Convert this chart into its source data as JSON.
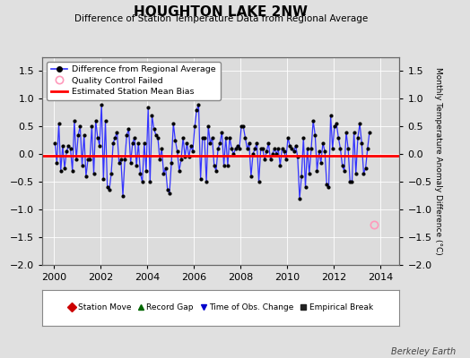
{
  "title": "HOUGHTON LAKE 2NW",
  "subtitle": "Difference of Station Temperature Data from Regional Average",
  "ylabel_right": "Monthly Temperature Anomaly Difference (°C)",
  "watermark": "Berkeley Earth",
  "xlim": [
    1999.5,
    2014.83
  ],
  "ylim": [
    -2.0,
    1.75
  ],
  "yticks": [
    -2.0,
    -1.5,
    -1.0,
    -0.5,
    0.0,
    0.5,
    1.0,
    1.5
  ],
  "xticks": [
    2000,
    2002,
    2004,
    2006,
    2008,
    2010,
    2012,
    2014
  ],
  "bias_value": -0.03,
  "background_color": "#e0e0e0",
  "plot_bg_color": "#dcdcdc",
  "line_color": "#3333ff",
  "dot_color": "#000000",
  "bias_color": "#ff0000",
  "qc_fail_x": [
    2013.75
  ],
  "qc_fail_y": [
    -1.27
  ],
  "data_x": [
    2000.042,
    2000.125,
    2000.208,
    2000.292,
    2000.375,
    2000.458,
    2000.542,
    2000.625,
    2000.708,
    2000.792,
    2000.875,
    2000.958,
    2001.042,
    2001.125,
    2001.208,
    2001.292,
    2001.375,
    2001.458,
    2001.542,
    2001.625,
    2001.708,
    2001.792,
    2001.875,
    2001.958,
    2002.042,
    2002.125,
    2002.208,
    2002.292,
    2002.375,
    2002.458,
    2002.542,
    2002.625,
    2002.708,
    2002.792,
    2002.875,
    2002.958,
    2003.042,
    2003.125,
    2003.208,
    2003.292,
    2003.375,
    2003.458,
    2003.542,
    2003.625,
    2003.708,
    2003.792,
    2003.875,
    2003.958,
    2004.042,
    2004.125,
    2004.208,
    2004.292,
    2004.375,
    2004.458,
    2004.542,
    2004.625,
    2004.708,
    2004.792,
    2004.875,
    2004.958,
    2005.042,
    2005.125,
    2005.208,
    2005.292,
    2005.375,
    2005.458,
    2005.542,
    2005.625,
    2005.708,
    2005.792,
    2005.875,
    2005.958,
    2006.042,
    2006.125,
    2006.208,
    2006.292,
    2006.375,
    2006.458,
    2006.542,
    2006.625,
    2006.708,
    2006.792,
    2006.875,
    2006.958,
    2007.042,
    2007.125,
    2007.208,
    2007.292,
    2007.375,
    2007.458,
    2007.542,
    2007.625,
    2007.708,
    2007.792,
    2007.875,
    2007.958,
    2008.042,
    2008.125,
    2008.208,
    2008.292,
    2008.375,
    2008.458,
    2008.542,
    2008.625,
    2008.708,
    2008.792,
    2008.875,
    2008.958,
    2009.042,
    2009.125,
    2009.208,
    2009.292,
    2009.375,
    2009.458,
    2009.542,
    2009.625,
    2009.708,
    2009.792,
    2009.875,
    2009.958,
    2010.042,
    2010.125,
    2010.208,
    2010.292,
    2010.375,
    2010.458,
    2010.542,
    2010.625,
    2010.708,
    2010.792,
    2010.875,
    2010.958,
    2011.042,
    2011.125,
    2011.208,
    2011.292,
    2011.375,
    2011.458,
    2011.542,
    2011.625,
    2011.708,
    2011.792,
    2011.875,
    2011.958,
    2012.042,
    2012.125,
    2012.208,
    2012.292,
    2012.375,
    2012.458,
    2012.542,
    2012.625,
    2012.708,
    2012.792,
    2012.875,
    2012.958,
    2013.042,
    2013.125,
    2013.208,
    2013.292,
    2013.375,
    2013.458,
    2013.542
  ],
  "data_y": [
    0.2,
    -0.15,
    0.55,
    -0.3,
    0.15,
    -0.25,
    0.05,
    0.15,
    0.1,
    -0.3,
    0.6,
    -0.1,
    0.35,
    0.5,
    -0.2,
    0.35,
    -0.4,
    -0.1,
    -0.1,
    0.5,
    -0.35,
    0.6,
    0.3,
    0.15,
    0.9,
    -0.45,
    0.6,
    -0.6,
    -0.65,
    -0.35,
    0.2,
    0.3,
    0.4,
    -0.15,
    -0.1,
    -0.75,
    -0.1,
    0.35,
    0.45,
    -0.15,
    0.2,
    0.3,
    -0.2,
    0.2,
    -0.35,
    -0.5,
    0.2,
    -0.3,
    0.85,
    -0.5,
    0.7,
    0.45,
    0.35,
    0.3,
    -0.1,
    0.1,
    -0.35,
    -0.25,
    -0.65,
    -0.7,
    -0.15,
    0.55,
    0.25,
    0.05,
    -0.3,
    -0.1,
    0.3,
    -0.05,
    0.2,
    -0.05,
    0.15,
    0.05,
    0.5,
    0.8,
    0.9,
    -0.45,
    0.3,
    0.3,
    -0.5,
    0.5,
    0.2,
    0.3,
    -0.2,
    -0.3,
    0.1,
    0.2,
    0.4,
    -0.2,
    0.3,
    -0.2,
    0.3,
    0.1,
    0.0,
    0.1,
    0.15,
    0.1,
    0.5,
    0.5,
    0.3,
    0.1,
    0.2,
    -0.4,
    0.0,
    0.1,
    0.2,
    -0.5,
    0.1,
    0.1,
    -0.1,
    0.05,
    0.2,
    -0.1,
    0.0,
    0.1,
    0.0,
    0.1,
    -0.2,
    0.1,
    0.05,
    -0.1,
    0.3,
    0.15,
    0.1,
    0.05,
    0.15,
    -0.05,
    -0.8,
    -0.4,
    0.3,
    -0.6,
    0.1,
    -0.35,
    0.1,
    0.6,
    0.35,
    -0.3,
    0.05,
    -0.15,
    0.2,
    0.05,
    -0.55,
    -0.6,
    0.7,
    0.1,
    0.5,
    0.55,
    0.3,
    0.1,
    -0.2,
    -0.3,
    0.4,
    0.1,
    -0.5,
    -0.5,
    0.4,
    -0.35,
    0.3,
    0.55,
    0.2,
    -0.35,
    -0.25,
    0.1,
    0.4
  ],
  "grid_color": "#ffffff",
  "grid_linewidth": 0.6
}
